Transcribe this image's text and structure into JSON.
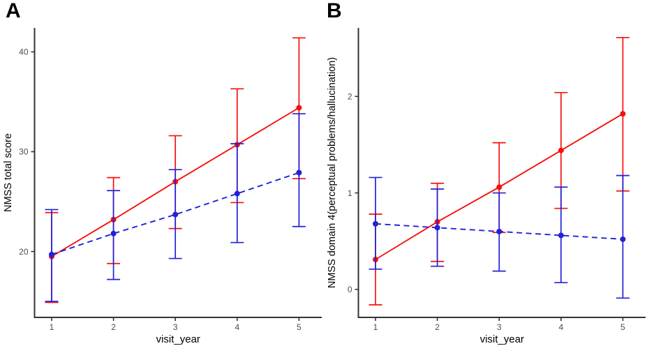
{
  "figure": {
    "background": "#ffffff",
    "colors": {
      "red": "#f6100c",
      "blue": "#2121d8",
      "axis_line": "#333333",
      "tick_mark": "#333333",
      "tick_label": "#4d4d4d",
      "axis_title": "#000000",
      "panel_letter": "#000000"
    }
  },
  "chart_data": [
    {
      "type": "line",
      "panel_label": "A",
      "xlabel": "visit_year",
      "ylabel": "NMSS total score",
      "x": [
        1,
        2,
        3,
        4,
        5
      ],
      "xticks": [
        1,
        2,
        3,
        4,
        5
      ],
      "yticks": [
        20,
        30,
        40
      ],
      "ylim": [
        13.4,
        42.4
      ],
      "grid": false,
      "legend": "none",
      "error_bars": true,
      "series": [
        {
          "name": "red-solid",
          "color_key": "red",
          "line_style": "solid",
          "values": [
            19.5,
            23.2,
            27.0,
            30.7,
            34.4
          ],
          "lower": [
            14.9,
            18.8,
            22.3,
            24.9,
            27.3
          ],
          "upper": [
            23.9,
            27.4,
            31.6,
            36.3,
            41.4
          ]
        },
        {
          "name": "blue-dashed",
          "color_key": "blue",
          "line_style": "dashed",
          "values": [
            19.7,
            21.8,
            23.7,
            25.8,
            27.9
          ],
          "lower": [
            15.0,
            17.2,
            19.3,
            20.9,
            22.5
          ],
          "upper": [
            24.2,
            26.1,
            28.2,
            30.8,
            33.8
          ]
        }
      ]
    },
    {
      "type": "line",
      "panel_label": "B",
      "xlabel": "visit_year",
      "ylabel": "NMSS domain 4(perceptual problems/hallucination)",
      "x": [
        1,
        2,
        3,
        4,
        5
      ],
      "xticks": [
        1,
        2,
        3,
        4,
        5
      ],
      "yticks": [
        0,
        1,
        2
      ],
      "ylim": [
        -0.29,
        2.71
      ],
      "grid": false,
      "legend": "none",
      "error_bars": true,
      "series": [
        {
          "name": "red-solid",
          "color_key": "red",
          "line_style": "solid",
          "values": [
            0.31,
            0.7,
            1.06,
            1.44,
            1.82
          ],
          "lower": [
            -0.16,
            0.29,
            0.59,
            0.84,
            1.02
          ],
          "upper": [
            0.78,
            1.1,
            1.52,
            2.04,
            2.61
          ]
        },
        {
          "name": "blue-dashed",
          "color_key": "blue",
          "line_style": "dashed",
          "values": [
            0.68,
            0.64,
            0.6,
            0.56,
            0.52
          ],
          "lower": [
            0.21,
            0.24,
            0.19,
            0.07,
            -0.09
          ],
          "upper": [
            1.16,
            1.04,
            1.0,
            1.06,
            1.18
          ]
        }
      ]
    }
  ]
}
